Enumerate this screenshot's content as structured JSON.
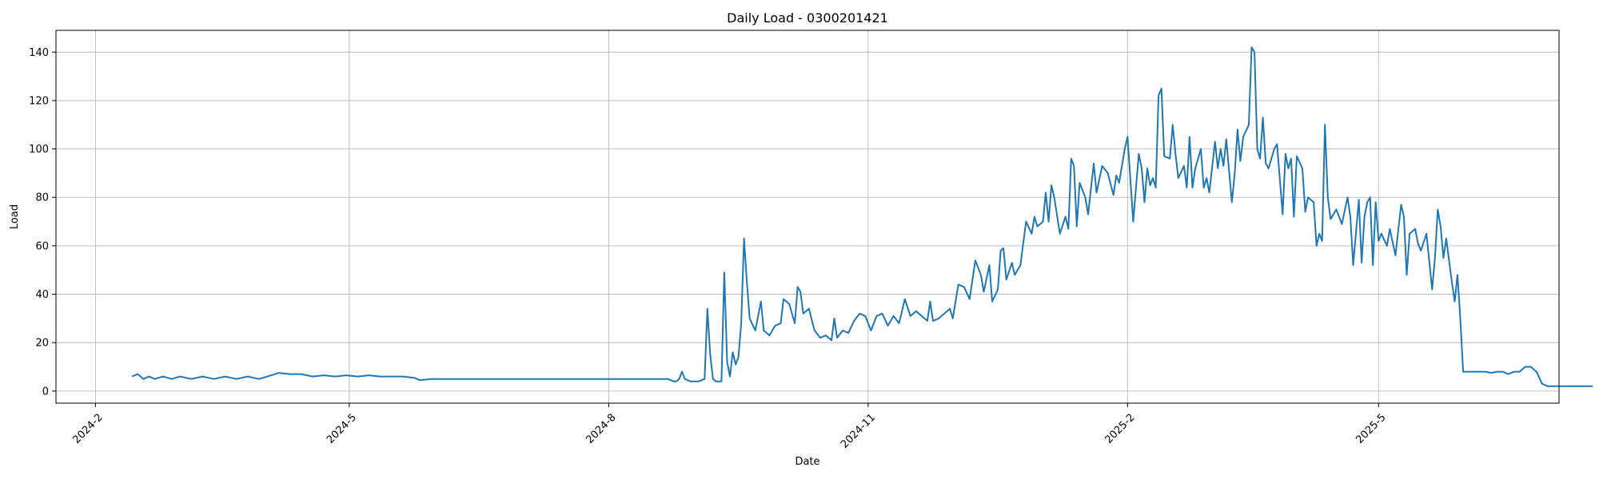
{
  "chart_data": {
    "type": "line",
    "title": "Daily Load - 0300201421",
    "xlabel": "Date",
    "ylabel": "Load",
    "xlim": [
      "2024-01-18",
      "2025-07-04"
    ],
    "ylim": [
      -5,
      149
    ],
    "x_ticks": [
      {
        "date": "2024-02-01",
        "label": "2024-2"
      },
      {
        "date": "2024-05-01",
        "label": "2024-5"
      },
      {
        "date": "2024-08-01",
        "label": "2024-8"
      },
      {
        "date": "2024-11-01",
        "label": "2024-11"
      },
      {
        "date": "2025-02-01",
        "label": "2025-2"
      },
      {
        "date": "2025-05-01",
        "label": "2025-5"
      }
    ],
    "y_ticks": [
      0,
      20,
      40,
      60,
      80,
      100,
      120,
      140
    ],
    "grid": true,
    "colors": {
      "line": "#1f77b4"
    },
    "series": [
      {
        "points": [
          [
            "2024-02-14",
            6
          ],
          [
            "2024-02-16",
            7
          ],
          [
            "2024-02-18",
            5
          ],
          [
            "2024-02-20",
            6
          ],
          [
            "2024-02-22",
            5
          ],
          [
            "2024-02-25",
            6
          ],
          [
            "2024-02-28",
            5
          ],
          [
            "2024-03-02",
            6
          ],
          [
            "2024-03-06",
            5
          ],
          [
            "2024-03-10",
            6
          ],
          [
            "2024-03-14",
            5
          ],
          [
            "2024-03-18",
            6
          ],
          [
            "2024-03-22",
            5
          ],
          [
            "2024-03-26",
            6
          ],
          [
            "2024-03-30",
            5
          ],
          [
            "2024-04-02",
            6
          ],
          [
            "2024-04-06",
            7.5
          ],
          [
            "2024-04-10",
            7
          ],
          [
            "2024-04-14",
            7
          ],
          [
            "2024-04-18",
            6
          ],
          [
            "2024-04-22",
            6.5
          ],
          [
            "2024-04-26",
            6
          ],
          [
            "2024-04-30",
            6.5
          ],
          [
            "2024-05-04",
            6
          ],
          [
            "2024-05-08",
            6.5
          ],
          [
            "2024-05-12",
            6
          ],
          [
            "2024-05-16",
            6
          ],
          [
            "2024-05-20",
            6
          ],
          [
            "2024-05-24",
            5.5
          ],
          [
            "2024-05-26",
            4.5
          ],
          [
            "2024-05-30",
            5
          ],
          [
            "2024-06-03",
            5
          ],
          [
            "2024-06-08",
            5
          ],
          [
            "2024-06-14",
            5
          ],
          [
            "2024-06-20",
            5
          ],
          [
            "2024-06-26",
            5
          ],
          [
            "2024-07-02",
            5
          ],
          [
            "2024-07-08",
            5
          ],
          [
            "2024-07-14",
            5
          ],
          [
            "2024-07-20",
            5
          ],
          [
            "2024-07-26",
            5
          ],
          [
            "2024-08-01",
            5
          ],
          [
            "2024-08-06",
            5
          ],
          [
            "2024-08-12",
            5
          ],
          [
            "2024-08-18",
            5
          ],
          [
            "2024-08-22",
            5
          ],
          [
            "2024-08-24",
            4
          ],
          [
            "2024-08-25",
            4
          ],
          [
            "2024-08-26",
            5
          ],
          [
            "2024-08-27",
            8
          ],
          [
            "2024-08-28",
            5
          ],
          [
            "2024-08-30",
            4
          ],
          [
            "2024-09-02",
            4
          ],
          [
            "2024-09-04",
            5
          ],
          [
            "2024-09-05",
            34
          ],
          [
            "2024-09-06",
            15
          ],
          [
            "2024-09-07",
            5
          ],
          [
            "2024-09-08",
            4
          ],
          [
            "2024-09-09",
            4
          ],
          [
            "2024-09-10",
            4
          ],
          [
            "2024-09-11",
            49
          ],
          [
            "2024-09-12",
            12
          ],
          [
            "2024-09-13",
            6
          ],
          [
            "2024-09-14",
            16
          ],
          [
            "2024-09-15",
            11
          ],
          [
            "2024-09-16",
            14
          ],
          [
            "2024-09-17",
            28
          ],
          [
            "2024-09-18",
            63
          ],
          [
            "2024-09-19",
            45
          ],
          [
            "2024-09-20",
            30
          ],
          [
            "2024-09-22",
            25
          ],
          [
            "2024-09-24",
            37
          ],
          [
            "2024-09-25",
            25
          ],
          [
            "2024-09-27",
            23
          ],
          [
            "2024-09-29",
            27
          ],
          [
            "2024-10-01",
            28
          ],
          [
            "2024-10-02",
            38
          ],
          [
            "2024-10-04",
            36
          ],
          [
            "2024-10-06",
            28
          ],
          [
            "2024-10-07",
            43
          ],
          [
            "2024-10-08",
            41
          ],
          [
            "2024-10-09",
            32
          ],
          [
            "2024-10-11",
            34
          ],
          [
            "2024-10-13",
            25
          ],
          [
            "2024-10-15",
            22
          ],
          [
            "2024-10-17",
            23
          ],
          [
            "2024-10-19",
            21
          ],
          [
            "2024-10-20",
            30
          ],
          [
            "2024-10-21",
            22
          ],
          [
            "2024-10-23",
            25
          ],
          [
            "2024-10-25",
            24
          ],
          [
            "2024-10-27",
            29
          ],
          [
            "2024-10-29",
            32
          ],
          [
            "2024-10-31",
            31
          ],
          [
            "2024-11-02",
            25
          ],
          [
            "2024-11-04",
            31
          ],
          [
            "2024-11-06",
            32
          ],
          [
            "2024-11-08",
            27
          ],
          [
            "2024-11-10",
            31
          ],
          [
            "2024-11-12",
            28
          ],
          [
            "2024-11-14",
            38
          ],
          [
            "2024-11-16",
            31
          ],
          [
            "2024-11-18",
            33
          ],
          [
            "2024-11-20",
            31
          ],
          [
            "2024-11-22",
            29
          ],
          [
            "2024-11-23",
            37
          ],
          [
            "2024-11-24",
            29
          ],
          [
            "2024-11-26",
            30
          ],
          [
            "2024-11-28",
            32
          ],
          [
            "2024-11-30",
            34
          ],
          [
            "2024-12-01",
            30
          ],
          [
            "2024-12-03",
            44
          ],
          [
            "2024-12-05",
            43
          ],
          [
            "2024-12-07",
            38
          ],
          [
            "2024-12-09",
            54
          ],
          [
            "2024-12-11",
            48
          ],
          [
            "2024-12-12",
            41
          ],
          [
            "2024-12-14",
            52
          ],
          [
            "2024-12-15",
            37
          ],
          [
            "2024-12-17",
            42
          ],
          [
            "2024-12-18",
            58
          ],
          [
            "2024-12-19",
            59
          ],
          [
            "2024-12-20",
            46
          ],
          [
            "2024-12-22",
            53
          ],
          [
            "2024-12-23",
            48
          ],
          [
            "2024-12-25",
            52
          ],
          [
            "2024-12-27",
            70
          ],
          [
            "2024-12-29",
            65
          ],
          [
            "2024-12-30",
            72
          ],
          [
            "2024-12-31",
            68
          ],
          [
            "2025-01-02",
            70
          ],
          [
            "2025-01-03",
            82
          ],
          [
            "2025-01-04",
            70
          ],
          [
            "2025-01-05",
            85
          ],
          [
            "2025-01-06",
            80
          ],
          [
            "2025-01-08",
            65
          ],
          [
            "2025-01-10",
            72
          ],
          [
            "2025-01-11",
            67
          ],
          [
            "2025-01-12",
            96
          ],
          [
            "2025-01-13",
            93
          ],
          [
            "2025-01-14",
            68
          ],
          [
            "2025-01-15",
            86
          ],
          [
            "2025-01-17",
            80
          ],
          [
            "2025-01-18",
            73
          ],
          [
            "2025-01-20",
            94
          ],
          [
            "2025-01-21",
            82
          ],
          [
            "2025-01-23",
            93
          ],
          [
            "2025-01-25",
            90
          ],
          [
            "2025-01-27",
            81
          ],
          [
            "2025-01-28",
            89
          ],
          [
            "2025-01-29",
            86
          ],
          [
            "2025-01-31",
            100
          ],
          [
            "2025-02-01",
            105
          ],
          [
            "2025-02-03",
            70
          ],
          [
            "2025-02-05",
            98
          ],
          [
            "2025-02-06",
            92
          ],
          [
            "2025-02-07",
            78
          ],
          [
            "2025-02-08",
            92
          ],
          [
            "2025-02-09",
            85
          ],
          [
            "2025-02-10",
            88
          ],
          [
            "2025-02-11",
            84
          ],
          [
            "2025-02-12",
            122
          ],
          [
            "2025-02-13",
            125
          ],
          [
            "2025-02-14",
            97
          ],
          [
            "2025-02-16",
            96
          ],
          [
            "2025-02-17",
            110
          ],
          [
            "2025-02-18",
            98
          ],
          [
            "2025-02-19",
            88
          ],
          [
            "2025-02-21",
            93
          ],
          [
            "2025-02-22",
            84
          ],
          [
            "2025-02-23",
            105
          ],
          [
            "2025-02-24",
            84
          ],
          [
            "2025-02-25",
            92
          ],
          [
            "2025-02-27",
            100
          ],
          [
            "2025-02-28",
            84
          ],
          [
            "2025-03-01",
            88
          ],
          [
            "2025-03-02",
            82
          ],
          [
            "2025-03-04",
            103
          ],
          [
            "2025-03-05",
            92
          ],
          [
            "2025-03-06",
            100
          ],
          [
            "2025-03-07",
            93
          ],
          [
            "2025-03-08",
            104
          ],
          [
            "2025-03-10",
            78
          ],
          [
            "2025-03-11",
            90
          ],
          [
            "2025-03-12",
            108
          ],
          [
            "2025-03-13",
            95
          ],
          [
            "2025-03-14",
            105
          ],
          [
            "2025-03-16",
            110
          ],
          [
            "2025-03-17",
            142
          ],
          [
            "2025-03-18",
            140
          ],
          [
            "2025-03-19",
            100
          ],
          [
            "2025-03-20",
            96
          ],
          [
            "2025-03-21",
            113
          ],
          [
            "2025-03-22",
            94
          ],
          [
            "2025-03-23",
            92
          ],
          [
            "2025-03-25",
            100
          ],
          [
            "2025-03-26",
            102
          ],
          [
            "2025-03-28",
            73
          ],
          [
            "2025-03-29",
            98
          ],
          [
            "2025-03-30",
            92
          ],
          [
            "2025-03-31",
            96
          ],
          [
            "2025-04-01",
            72
          ],
          [
            "2025-04-02",
            97
          ],
          [
            "2025-04-04",
            92
          ],
          [
            "2025-04-05",
            74
          ],
          [
            "2025-04-06",
            80
          ],
          [
            "2025-04-08",
            78
          ],
          [
            "2025-04-09",
            60
          ],
          [
            "2025-04-10",
            65
          ],
          [
            "2025-04-11",
            62
          ],
          [
            "2025-04-12",
            110
          ],
          [
            "2025-04-13",
            80
          ],
          [
            "2025-04-14",
            71
          ],
          [
            "2025-04-16",
            75
          ],
          [
            "2025-04-18",
            69
          ],
          [
            "2025-04-20",
            80
          ],
          [
            "2025-04-21",
            72
          ],
          [
            "2025-04-22",
            52
          ],
          [
            "2025-04-24",
            79
          ],
          [
            "2025-04-25",
            53
          ],
          [
            "2025-04-26",
            72
          ],
          [
            "2025-04-27",
            78
          ],
          [
            "2025-04-28",
            80
          ],
          [
            "2025-04-29",
            52
          ],
          [
            "2025-04-30",
            78
          ],
          [
            "2025-05-01",
            62
          ],
          [
            "2025-05-02",
            65
          ],
          [
            "2025-05-04",
            60
          ],
          [
            "2025-05-05",
            67
          ],
          [
            "2025-05-07",
            56
          ],
          [
            "2025-05-09",
            77
          ],
          [
            "2025-05-10",
            72
          ],
          [
            "2025-05-11",
            48
          ],
          [
            "2025-05-12",
            65
          ],
          [
            "2025-05-14",
            67
          ],
          [
            "2025-05-15",
            61
          ],
          [
            "2025-05-16",
            58
          ],
          [
            "2025-05-18",
            65
          ],
          [
            "2025-05-20",
            42
          ],
          [
            "2025-05-21",
            55
          ],
          [
            "2025-05-22",
            75
          ],
          [
            "2025-05-23",
            68
          ],
          [
            "2025-05-24",
            55
          ],
          [
            "2025-05-25",
            63
          ],
          [
            "2025-05-27",
            45
          ],
          [
            "2025-05-28",
            37
          ],
          [
            "2025-05-29",
            48
          ],
          [
            "2025-05-30",
            30
          ],
          [
            "2025-05-31",
            8
          ],
          [
            "2025-06-02",
            8
          ],
          [
            "2025-06-05",
            8
          ],
          [
            "2025-06-08",
            8
          ],
          [
            "2025-06-10",
            7.5
          ],
          [
            "2025-06-12",
            8
          ],
          [
            "2025-06-14",
            8
          ],
          [
            "2025-06-16",
            7
          ],
          [
            "2025-06-18",
            8
          ],
          [
            "2025-06-20",
            8
          ],
          [
            "2025-06-22",
            10
          ],
          [
            "2025-06-24",
            10
          ],
          [
            "2025-06-26",
            8
          ],
          [
            "2025-06-28",
            3
          ],
          [
            "2025-06-30",
            2
          ],
          [
            "2025-07-04",
            2
          ],
          [
            "2025-07-10",
            2
          ],
          [
            "2025-07-16",
            2
          ]
        ]
      }
    ]
  }
}
